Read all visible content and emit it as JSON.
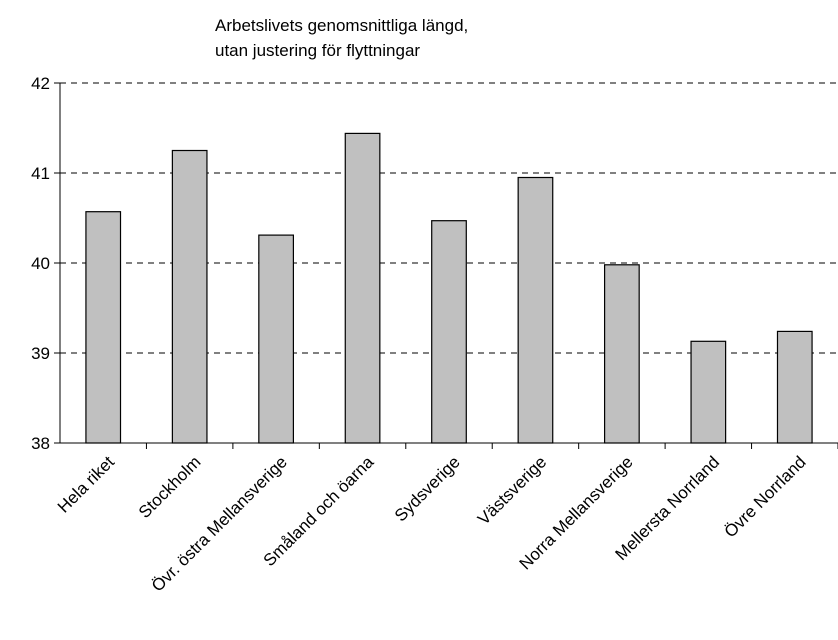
{
  "chart_data": {
    "type": "bar",
    "title": "Arbetslivets genomsnittliga längd,",
    "subtitle": "utan justering för flyttningar",
    "categories": [
      "Hela riket",
      "Stockholm",
      "Övr. östra Mellansverige",
      "Småland och öarna",
      "Sydsverige",
      "Västsverige",
      "Norra Mellansverige",
      "Mellersta Norrland",
      "Övre Norrland"
    ],
    "values": [
      40.57,
      41.25,
      40.31,
      41.44,
      40.47,
      40.95,
      39.98,
      39.13,
      39.24
    ],
    "ylim": [
      38,
      42
    ],
    "yticks": [
      "38",
      "39",
      "40",
      "41",
      "42"
    ],
    "grid": true,
    "bar_color": "#c0c0c0"
  }
}
